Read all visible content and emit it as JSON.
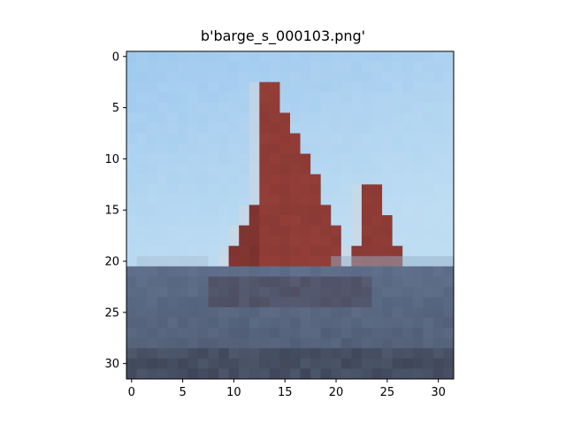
{
  "figure": {
    "title": "b'barge_s_000103.png'"
  },
  "image": {
    "grid": 32,
    "description_colors": {
      "sky_top": "#9ec8ee",
      "sky_bottom": "#bcdcf2",
      "sail": "#98403a",
      "sail_dark": "#6e2c2a",
      "sea": "#5a6a86",
      "sea_dark": "#3e4658",
      "hull": "#4a4456"
    }
  },
  "axes": {
    "x_ticks": [
      "0",
      "5",
      "10",
      "15",
      "20",
      "25",
      "30"
    ],
    "y_ticks": [
      "0",
      "5",
      "10",
      "15",
      "20",
      "25",
      "30"
    ]
  }
}
